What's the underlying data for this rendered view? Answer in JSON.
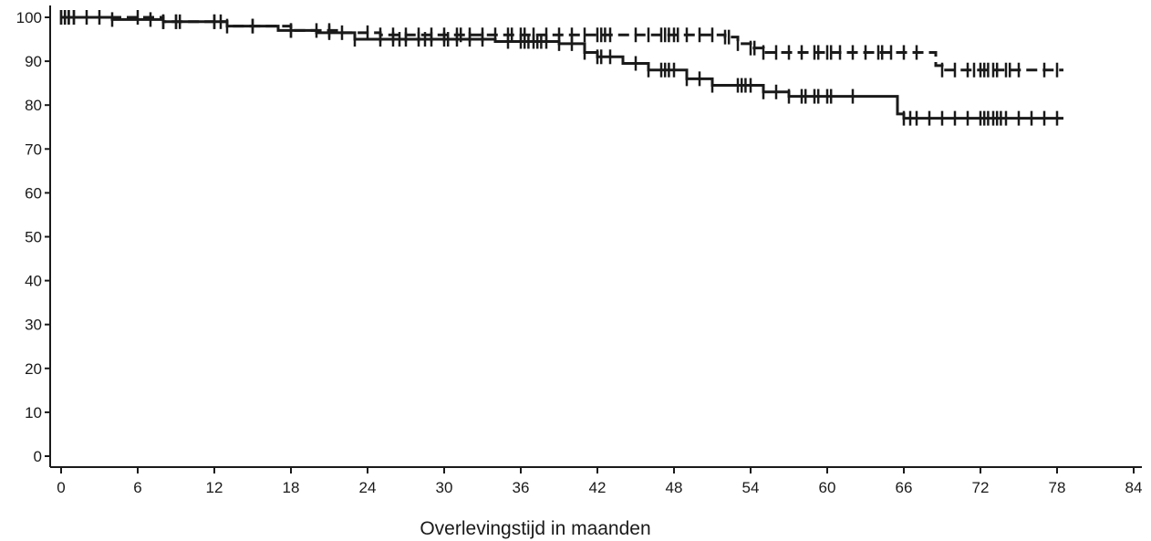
{
  "chart_data": {
    "type": "line",
    "title": "",
    "xlabel": "Overlevingstijd  in maanden",
    "ylabel": "",
    "xlim": [
      0,
      84
    ],
    "ylim": [
      0,
      100
    ],
    "x_ticks": [
      "0",
      "6",
      "12",
      "18",
      "24",
      "30",
      "36",
      "42",
      "48",
      "54",
      "60",
      "66",
      "72",
      "78",
      "84"
    ],
    "y_ticks": [
      "0",
      "10",
      "20",
      "30",
      "40",
      "50",
      "60",
      "70",
      "80",
      "90",
      "100"
    ],
    "grid": false,
    "legend": "none",
    "series": [
      {
        "style": "solid",
        "color": "#1a1a1a",
        "steps": [
          [
            0,
            100
          ],
          [
            4,
            99.5
          ],
          [
            8,
            99
          ],
          [
            13,
            98
          ],
          [
            17,
            97
          ],
          [
            20,
            96.5
          ],
          [
            23,
            95
          ],
          [
            30,
            95
          ],
          [
            34,
            94.5
          ],
          [
            39,
            94
          ],
          [
            41,
            92
          ],
          [
            42,
            91
          ],
          [
            44,
            89.5
          ],
          [
            46,
            88
          ],
          [
            49,
            86
          ],
          [
            51,
            84.5
          ],
          [
            55,
            83
          ],
          [
            57,
            82
          ],
          [
            65,
            82
          ],
          [
            65.5,
            78
          ],
          [
            66,
            77
          ],
          [
            78.5,
            77
          ]
        ],
        "censor_x": [
          0,
          0.3,
          0.6,
          1,
          2,
          3,
          4,
          7,
          8,
          9,
          9.3,
          12,
          12.5,
          13,
          15,
          18,
          21,
          23,
          25,
          26,
          26.5,
          27,
          28,
          28.5,
          29,
          30,
          30.3,
          31,
          32,
          33,
          35,
          36,
          36.3,
          36.6,
          37,
          37.3,
          37.6,
          38,
          39,
          40,
          41,
          42,
          42.3,
          43,
          45,
          46,
          47,
          47.3,
          47.6,
          48,
          49,
          50,
          51,
          53,
          53.3,
          53.6,
          54,
          55,
          56,
          57,
          58,
          58.3,
          59,
          59.3,
          60,
          60.3,
          62,
          66,
          66.5,
          67,
          68,
          69,
          70,
          71,
          72,
          72.3,
          72.6,
          73,
          73.3,
          73.6,
          74,
          75,
          76,
          77,
          78
        ]
      },
      {
        "style": "dashed",
        "color": "#1a1a1a",
        "steps": [
          [
            0,
            100
          ],
          [
            8,
            99
          ],
          [
            13,
            98
          ],
          [
            18,
            97
          ],
          [
            22,
            96.5
          ],
          [
            25,
            96
          ],
          [
            39,
            96
          ],
          [
            44,
            96
          ],
          [
            52,
            95.5
          ],
          [
            53,
            94
          ],
          [
            54,
            93
          ],
          [
            55,
            92
          ],
          [
            68,
            92
          ],
          [
            68.5,
            89
          ],
          [
            69,
            88
          ],
          [
            78.5,
            88
          ]
        ],
        "censor_x": [
          0,
          0.3,
          0.6,
          1,
          6,
          8,
          9,
          12,
          15,
          18,
          20,
          21,
          22,
          24,
          25,
          26,
          27,
          28,
          29,
          30,
          31,
          31.3,
          32,
          33,
          34,
          35,
          35.3,
          36,
          36.3,
          37,
          38,
          39,
          40,
          41,
          42,
          42.3,
          42.6,
          43,
          45,
          46,
          47,
          47.3,
          47.6,
          48,
          48.3,
          49,
          50,
          51,
          52,
          52.3,
          53,
          54,
          54.3,
          55,
          56,
          57,
          58,
          59,
          59.3,
          60,
          60.3,
          61,
          62,
          63,
          64,
          64.3,
          65,
          66,
          67,
          69,
          70,
          71,
          71.5,
          72,
          72.3,
          72.6,
          73,
          73.3,
          74,
          74.3,
          75,
          77,
          78
        ]
      }
    ]
  }
}
